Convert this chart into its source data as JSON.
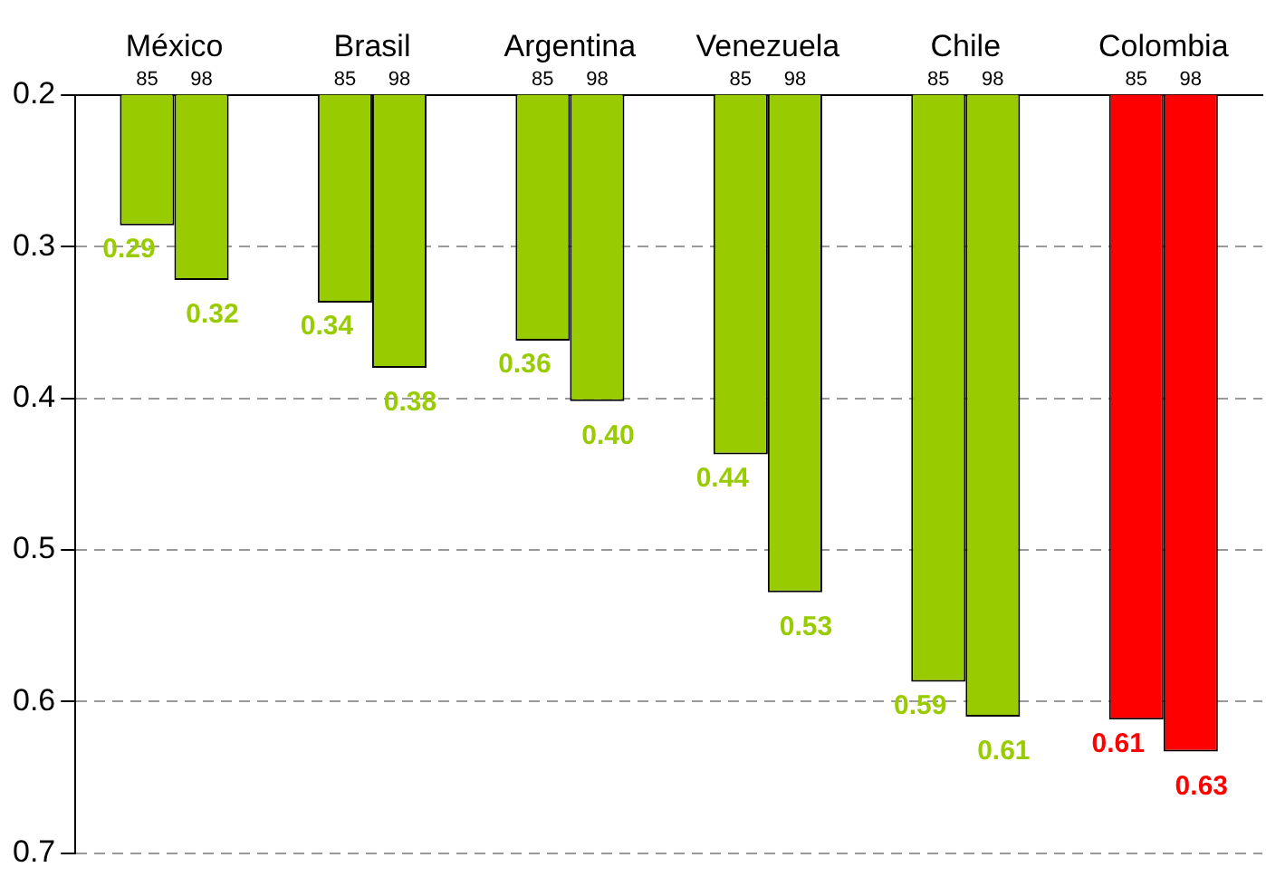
{
  "chart_data": {
    "type": "bar",
    "categories": [
      "México",
      "Brasil",
      "Argentina",
      "Venezuela",
      "Chile",
      "Colombia"
    ],
    "series": [
      {
        "name": "85",
        "colors": [
          "#99cc00",
          "#99cc00",
          "#99cc00",
          "#99cc00",
          "#99cc00",
          "#ff0000"
        ],
        "values": [
          0.286,
          0.337,
          0.362,
          0.437,
          0.587,
          0.612
        ],
        "value_labels": [
          "0.29",
          "0.34",
          "0.36",
          "0.44",
          "0.59",
          "0.61"
        ]
      },
      {
        "name": "98",
        "colors": [
          "#99cc00",
          "#99cc00",
          "#99cc00",
          "#99cc00",
          "#99cc00",
          "#ff0000"
        ],
        "values": [
          0.322,
          0.38,
          0.402,
          0.528,
          0.61,
          0.633
        ],
        "value_labels": [
          "0.32",
          "0.38",
          "0.40",
          "0.53",
          "0.61",
          "0.63"
        ]
      }
    ],
    "ylim": [
      0.7,
      0.2
    ],
    "yticks": [
      0.2,
      0.3,
      0.4,
      0.5,
      0.6,
      0.7
    ],
    "grid": "y",
    "legend": false
  }
}
